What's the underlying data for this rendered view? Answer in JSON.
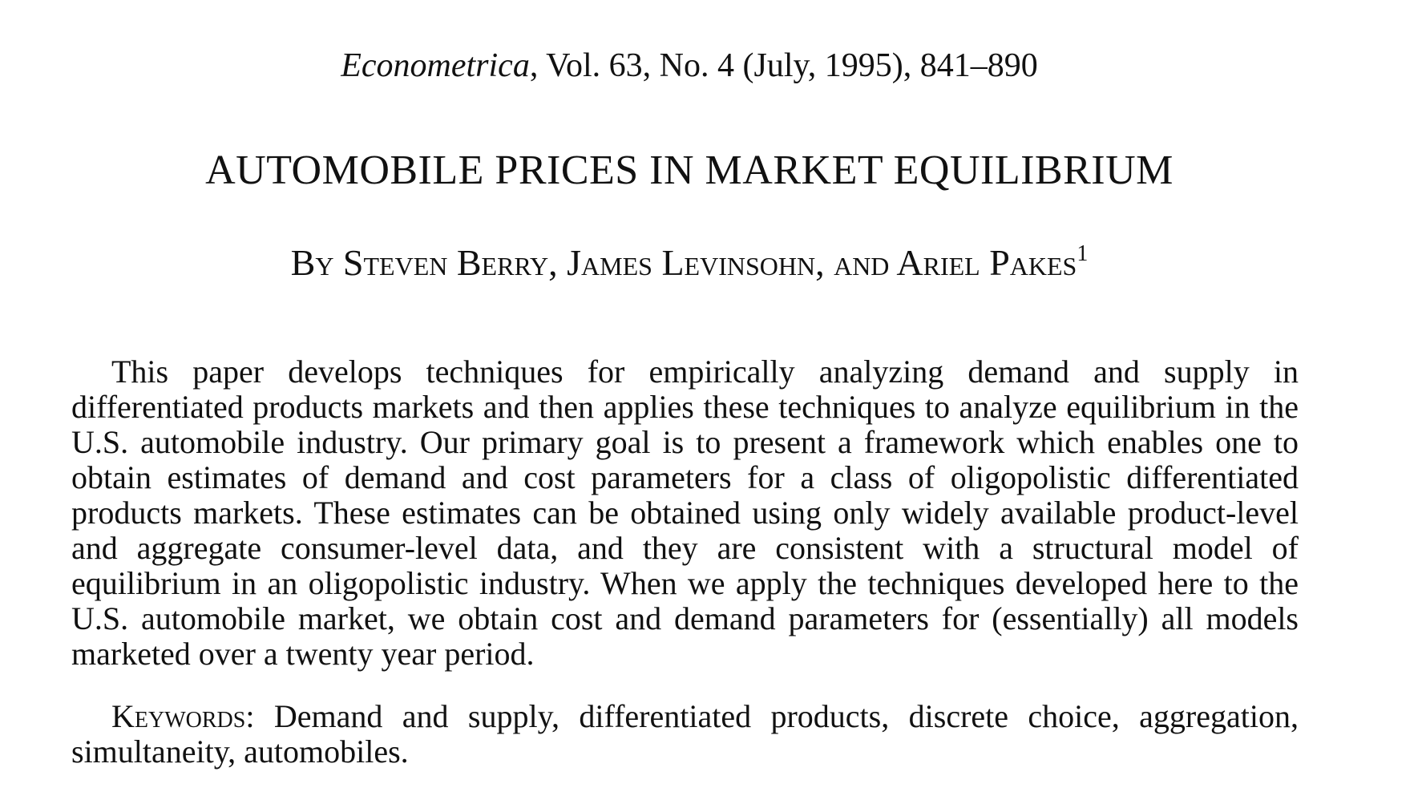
{
  "header": {
    "journal": "Econometrica",
    "citation_rest": ", Vol. 63, No. 4 (July, 1995), 841–890"
  },
  "paper": {
    "title": "AUTOMOBILE PRICES IN MARKET EQUILIBRIUM",
    "byline": "By Steven Berry, James Levinsohn, and Ariel Pakes",
    "footnote_marker": "1"
  },
  "abstract": {
    "text": "This paper develops techniques for empirically analyzing demand and supply in differentiated products markets and then applies these techniques to analyze equilibrium in the U.S. automobile industry. Our primary goal is to present a framework which enables one to obtain estimates of demand and cost parameters for a class of oligopolistic differentiated products markets. These estimates can be obtained using only widely available product-level and aggregate consumer-level data, and they are consistent with a structural model of equilibrium in an oligopolistic industry. When we apply the tech­niques developed here to the U.S. automobile market, we obtain cost and demand parameters for (essentially) all models marketed over a twenty year period."
  },
  "keywords": {
    "label": "Keywords:",
    "text": " Demand and supply, differentiated products, discrete choice, aggregation, simultaneity, automobiles."
  }
}
